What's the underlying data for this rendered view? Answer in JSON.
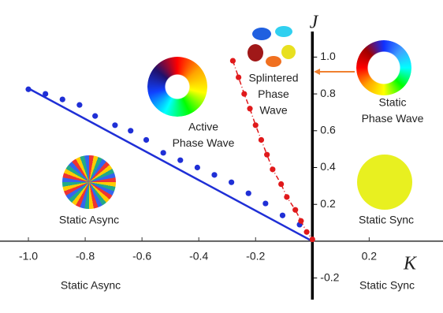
{
  "chart_data": {
    "type": "phase-diagram",
    "xlabel": "K",
    "ylabel": "J",
    "xlim": [
      -1.1,
      0.46
    ],
    "ylim": [
      -0.39,
      1.31
    ],
    "xticks": [
      {
        "value": -1,
        "label": "-1.0"
      },
      -0.8,
      -0.6,
      -0.4,
      -0.2,
      0.2
    ],
    "yticks": [
      {
        "value": 1,
        "label": "1.0"
      },
      0.8,
      0.6,
      0.4,
      0.2,
      -0.2
    ],
    "series": [
      {
        "kind": "line",
        "color": "#1f2fd6",
        "x": [
          -1.0,
          0
        ],
        "values": [
          0.83,
          0
        ]
      },
      {
        "kind": "dots",
        "color": "#1f2fd6",
        "x": [
          -1.0,
          -0.94,
          -0.88,
          -0.82,
          -0.765,
          -0.695,
          -0.64,
          -0.585,
          -0.525,
          -0.465,
          -0.405,
          -0.345,
          -0.285,
          -0.225,
          -0.165,
          -0.105,
          -0.045
        ],
        "values": [
          0.825,
          0.8,
          0.77,
          0.74,
          0.68,
          0.63,
          0.6,
          0.55,
          0.48,
          0.44,
          0.4,
          0.36,
          0.32,
          0.26,
          0.205,
          0.14,
          0.09
        ]
      },
      {
        "kind": "dashdots",
        "color": "#e0191b",
        "x": [
          -0.28,
          -0.26,
          -0.24,
          -0.22,
          -0.2,
          -0.18,
          -0.16,
          -0.14,
          -0.11,
          -0.09,
          -0.06,
          -0.04,
          -0.02,
          0
        ],
        "values": [
          0.98,
          0.89,
          0.8,
          0.72,
          0.63,
          0.55,
          0.47,
          0.39,
          0.31,
          0.24,
          0.17,
          0.11,
          0.05,
          0.01
        ]
      }
    ],
    "annotations": [
      [
        "Splintered",
        "Phase",
        "Wave"
      ],
      [
        "Active",
        "Phase Wave"
      ],
      [
        "Static",
        "Phase Wave"
      ],
      [
        "Static Async"
      ],
      [
        "Static Sync"
      ],
      [
        "Static Async"
      ],
      [
        "Static Sync"
      ]
    ]
  }
}
